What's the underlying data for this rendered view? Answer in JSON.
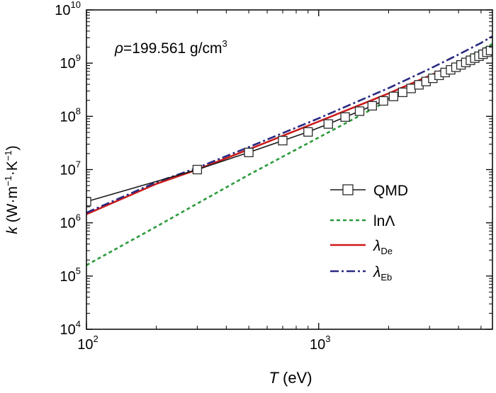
{
  "chart_data": {
    "type": "line",
    "title": "",
    "annotation": {
      "rho_symbol": "ρ",
      "rho_text": "=199.561 g/cm",
      "rho_exp": "3"
    },
    "xlabel": {
      "var": "T",
      "unit": " (eV)"
    },
    "ylabel": {
      "var": "k",
      "open": " (W·m",
      "exp1": "−1",
      "mid": "·K",
      "exp2": "−1",
      "close": ")"
    },
    "xscale": "log",
    "yscale": "log",
    "xlim": [
      100,
      5600
    ],
    "ylim": [
      10000,
      10000000000
    ],
    "x_ticks": [
      {
        "value": 100,
        "base": "10",
        "exp": "2"
      },
      {
        "value": 1000,
        "base": "10",
        "exp": "3"
      }
    ],
    "y_ticks": [
      {
        "value": 10000,
        "base": "10",
        "exp": "4"
      },
      {
        "value": 100000,
        "base": "10",
        "exp": "5"
      },
      {
        "value": 1000000,
        "base": "10",
        "exp": "6"
      },
      {
        "value": 10000000,
        "base": "10",
        "exp": "7"
      },
      {
        "value": 100000000,
        "base": "10",
        "exp": "8"
      },
      {
        "value": 1000000000,
        "base": "10",
        "exp": "9"
      },
      {
        "value": 10000000000,
        "base": "10",
        "exp": "10"
      }
    ],
    "grid": false,
    "legend_position": "right-middle",
    "series": [
      {
        "name": "QMD",
        "label_main": "QMD",
        "label_sub": "",
        "color": "#1a1a1a",
        "dash": "solid",
        "marker": "square",
        "points": [
          [
            100,
            2500000
          ],
          [
            300,
            10000000
          ],
          [
            500,
            21000000
          ],
          [
            700,
            35000000
          ],
          [
            900,
            51000000
          ],
          [
            1100,
            72000000
          ],
          [
            1300,
            97000000
          ],
          [
            1500,
            125000000
          ],
          [
            1700,
            158000000
          ],
          [
            1900,
            195000000
          ],
          [
            2100,
            237000000
          ],
          [
            2300,
            283000000
          ],
          [
            2500,
            335000000
          ],
          [
            2700,
            391000000
          ],
          [
            2900,
            452000000
          ],
          [
            3100,
            518000000
          ],
          [
            3300,
            590000000
          ],
          [
            3500,
            667000000
          ],
          [
            3700,
            748000000
          ],
          [
            3900,
            836000000
          ],
          [
            4100,
            928000000
          ],
          [
            4300,
            1030000000
          ],
          [
            4500,
            1130000000
          ],
          [
            4700,
            1240000000
          ],
          [
            4900,
            1350000000
          ],
          [
            5100,
            1470000000
          ],
          [
            5300,
            1600000000
          ],
          [
            5500,
            1730000000
          ]
        ]
      },
      {
        "name": "lnΛ",
        "label_main": "lnΛ",
        "label_sub": "",
        "color": "#2a9a3a",
        "dash": "dashed",
        "marker": "none",
        "points": [
          [
            100,
            160000
          ],
          [
            200,
            850000
          ],
          [
            300,
            2300000
          ],
          [
            500,
            8000000
          ],
          [
            1000,
            40000000
          ],
          [
            2000,
            200000000
          ],
          [
            3000,
            530000000
          ],
          [
            4000,
            1050000000
          ],
          [
            5000,
            1750000000
          ],
          [
            5600,
            2300000000
          ]
        ]
      },
      {
        "name": "λDe",
        "label_main": "λ",
        "label_sub": "De",
        "color": "#cc1a1a",
        "dash": "solid",
        "marker": "none",
        "points": [
          [
            100,
            1450000
          ],
          [
            200,
            5400000
          ],
          [
            300,
            10000000
          ],
          [
            500,
            24000000
          ],
          [
            1000,
            80000000
          ],
          [
            2000,
            270000000
          ],
          [
            3000,
            580000000
          ],
          [
            4000,
            1000000000
          ],
          [
            5000,
            1550000000
          ],
          [
            5600,
            1950000000
          ]
        ]
      },
      {
        "name": "λEb",
        "label_main": "λ",
        "label_sub": "Eb",
        "color": "#2a2a82",
        "dash": "dashdot",
        "marker": "none",
        "points": [
          [
            100,
            1550000
          ],
          [
            200,
            5800000
          ],
          [
            300,
            10800000
          ],
          [
            500,
            26500000
          ],
          [
            1000,
            92000000
          ],
          [
            2000,
            340000000
          ],
          [
            3000,
            780000000
          ],
          [
            4000,
            1450000000
          ],
          [
            5000,
            2400000000
          ],
          [
            5600,
            3200000000
          ]
        ]
      }
    ]
  }
}
